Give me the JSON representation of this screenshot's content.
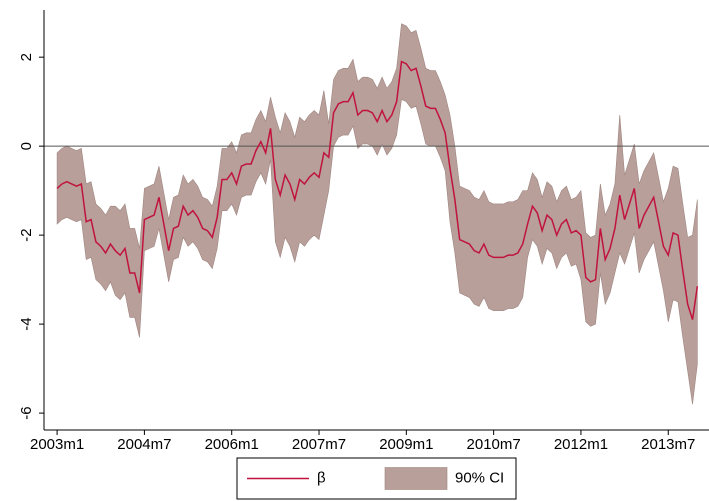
{
  "chart_data": {
    "type": "line",
    "x": [
      516,
      517,
      518,
      519,
      520,
      521,
      522,
      523,
      524,
      525,
      526,
      527,
      528,
      529,
      530,
      531,
      532,
      533,
      534,
      535,
      536,
      537,
      538,
      539,
      540,
      541,
      542,
      543,
      544,
      545,
      546,
      547,
      548,
      549,
      550,
      551,
      552,
      553,
      554,
      555,
      556,
      557,
      558,
      559,
      560,
      561,
      562,
      563,
      564,
      565,
      566,
      567,
      568,
      569,
      570,
      571,
      572,
      573,
      574,
      575,
      576,
      577,
      578,
      579,
      580,
      581,
      582,
      583,
      584,
      585,
      586,
      587,
      588,
      589,
      590,
      591,
      592,
      593,
      594,
      595,
      596,
      597,
      598,
      599,
      600,
      601,
      602,
      603,
      604,
      605,
      606,
      607,
      608,
      609,
      610,
      611,
      612,
      613,
      614,
      615,
      616,
      617,
      618,
      619,
      620,
      621,
      622,
      623,
      624,
      625,
      626,
      627,
      628,
      629,
      630,
      631,
      632,
      633,
      634,
      635,
      636,
      637,
      638,
      639,
      640,
      641,
      642,
      643,
      644,
      645,
      646,
      647,
      648
    ],
    "series": [
      {
        "name": "β",
        "color": "#c0143c",
        "values": [
          -0.95,
          -0.85,
          -0.8,
          -0.85,
          -0.9,
          -0.85,
          -1.7,
          -1.65,
          -2.15,
          -2.25,
          -2.4,
          -2.2,
          -2.35,
          -2.45,
          -2.3,
          -2.85,
          -2.85,
          -3.3,
          -1.65,
          -1.6,
          -1.55,
          -1.15,
          -1.75,
          -2.35,
          -1.85,
          -1.8,
          -1.35,
          -1.55,
          -1.45,
          -1.6,
          -1.85,
          -1.9,
          -2.05,
          -1.6,
          -0.75,
          -0.75,
          -0.6,
          -0.85,
          -0.45,
          -0.4,
          -0.4,
          -0.1,
          0.1,
          -0.15,
          0.4,
          -0.75,
          -1.1,
          -0.65,
          -0.85,
          -1.2,
          -0.75,
          -0.85,
          -0.7,
          -0.6,
          -0.7,
          -0.15,
          -0.25,
          0.75,
          0.95,
          1.0,
          1.0,
          1.2,
          0.7,
          0.8,
          0.8,
          0.75,
          0.55,
          0.8,
          0.55,
          0.7,
          1.0,
          1.9,
          1.85,
          1.7,
          1.75,
          1.35,
          0.9,
          0.85,
          0.85,
          0.6,
          0.3,
          -0.5,
          -1.2,
          -2.1,
          -2.15,
          -2.2,
          -2.35,
          -2.4,
          -2.2,
          -2.45,
          -2.5,
          -2.5,
          -2.5,
          -2.45,
          -2.45,
          -2.4,
          -2.2,
          -1.75,
          -1.35,
          -1.5,
          -1.9,
          -1.55,
          -1.65,
          -2.0,
          -1.75,
          -1.65,
          -1.95,
          -1.9,
          -2.0,
          -2.95,
          -3.05,
          -3.0,
          -1.85,
          -2.55,
          -2.3,
          -1.85,
          -1.1,
          -1.65,
          -1.3,
          -0.95,
          -1.85,
          -1.55,
          -1.35,
          -1.15,
          -1.7,
          -2.25,
          -2.45,
          -1.95,
          -2.0,
          -2.8,
          -3.55,
          -3.9,
          -3.15
        ]
      }
    ],
    "band": {
      "name": "90% CI",
      "color": "#b89f9a",
      "lower": [
        -1.75,
        -1.65,
        -1.6,
        -1.65,
        -1.7,
        -1.65,
        -2.55,
        -2.5,
        -3.0,
        -3.1,
        -3.25,
        -3.05,
        -3.35,
        -3.45,
        -3.3,
        -3.85,
        -3.85,
        -4.3,
        -2.35,
        -2.3,
        -2.25,
        -1.85,
        -2.45,
        -3.05,
        -2.55,
        -2.5,
        -2.05,
        -2.25,
        -2.15,
        -2.3,
        -2.55,
        -2.6,
        -2.75,
        -2.3,
        -1.45,
        -1.45,
        -1.3,
        -1.55,
        -1.15,
        -1.1,
        -1.1,
        -0.8,
        -0.6,
        -0.85,
        -0.3,
        -2.15,
        -2.5,
        -2.05,
        -2.25,
        -2.6,
        -2.15,
        -2.25,
        -2.1,
        -2.0,
        -2.1,
        -1.55,
        -1.0,
        0,
        0.2,
        0.25,
        0.25,
        0.45,
        -0.05,
        0.05,
        0.05,
        0,
        -0.2,
        0.05,
        -0.2,
        -0.05,
        0.25,
        1.05,
        1.0,
        0.85,
        0.9,
        0.5,
        0.05,
        0,
        0,
        -0.25,
        -0.55,
        -1.7,
        -2.4,
        -3.3,
        -3.35,
        -3.4,
        -3.55,
        -3.6,
        -3.4,
        -3.65,
        -3.7,
        -3.7,
        -3.7,
        -3.65,
        -3.65,
        -3.6,
        -3.4,
        -2.5,
        -2.1,
        -2.25,
        -2.65,
        -2.3,
        -2.4,
        -2.75,
        -2.5,
        -2.4,
        -2.7,
        -2.65,
        -3.0,
        -3.95,
        -4.05,
        -4.0,
        -2.85,
        -3.55,
        -3.3,
        -2.85,
        -2.4,
        -2.65,
        -2.3,
        -1.95,
        -2.85,
        -2.55,
        -2.35,
        -2.15,
        -2.7,
        -3.25,
        -3.95,
        -3.45,
        -3.5,
        -4.3,
        -5.05,
        -5.8,
        -4.9
      ],
      "upper": [
        -0.15,
        -0.05,
        0,
        -0.05,
        -0.1,
        -0.05,
        -0.85,
        -0.8,
        -1.3,
        -1.4,
        -1.55,
        -1.35,
        -1.35,
        -1.45,
        -1.3,
        -1.85,
        -1.85,
        -2.3,
        -0.95,
        -0.9,
        -0.85,
        -0.45,
        -1.05,
        -1.65,
        -1.15,
        -1.1,
        -0.65,
        -0.85,
        -0.75,
        -0.9,
        -1.15,
        -1.2,
        -1.35,
        -0.9,
        -0.05,
        -0.05,
        0.1,
        -0.15,
        0.25,
        0.3,
        0.3,
        0.6,
        0.8,
        0.55,
        1.1,
        0.65,
        0.3,
        0.75,
        0.55,
        0.2,
        0.65,
        0.55,
        0.7,
        0.8,
        0.7,
        1.25,
        0.5,
        1.5,
        1.7,
        1.75,
        1.75,
        1.95,
        1.45,
        1.55,
        1.55,
        1.5,
        1.3,
        1.55,
        1.3,
        1.45,
        1.75,
        2.75,
        2.7,
        2.55,
        2.6,
        2.2,
        1.75,
        1.7,
        1.7,
        1.45,
        1.15,
        0.7,
        0,
        -0.9,
        -0.95,
        -1.0,
        -1.15,
        -1.2,
        -1.0,
        -1.25,
        -1.3,
        -1.3,
        -1.3,
        -1.25,
        -1.25,
        -1.2,
        -1.0,
        -1.0,
        -0.6,
        -0.75,
        -1.15,
        -0.8,
        -0.9,
        -1.25,
        -1.0,
        -0.9,
        -1.2,
        -1.15,
        -1.0,
        -1.95,
        -2.05,
        -2.0,
        -0.85,
        -1.55,
        -1.3,
        -0.85,
        0.7,
        -0.65,
        -0.3,
        0.05,
        -0.85,
        -0.55,
        -0.35,
        -0.15,
        -0.7,
        -1.25,
        -0.95,
        -0.45,
        -0.5,
        -1.3,
        -2.05,
        -2.0,
        -1.2
      ]
    },
    "xlim": [
      513.3,
      650.4
    ],
    "xticks": [
      {
        "value": 516,
        "label": "2003m1"
      },
      {
        "value": 534,
        "label": "2004m7"
      },
      {
        "value": 552,
        "label": "2006m1"
      },
      {
        "value": 570,
        "label": "2007m7"
      },
      {
        "value": 588,
        "label": "2009m1"
      },
      {
        "value": 606,
        "label": "2010m7"
      },
      {
        "value": 624,
        "label": "2012m1"
      },
      {
        "value": 642,
        "label": "2013m7"
      }
    ],
    "ylim": [
      -6.38,
      3.06
    ],
    "yticks": [
      -6,
      -4,
      -2,
      0,
      2
    ],
    "reference_line": 0,
    "legend": "bottom"
  }
}
